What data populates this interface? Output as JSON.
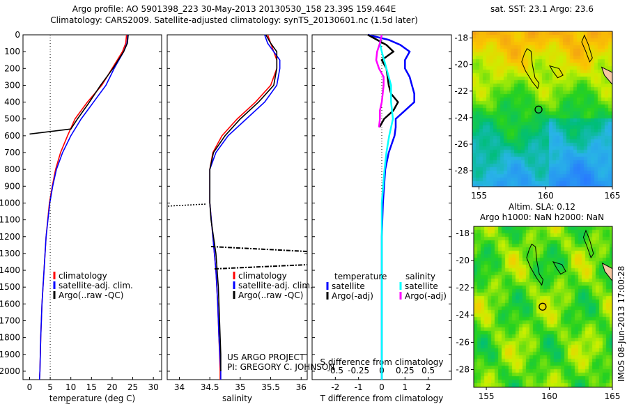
{
  "title": {
    "line1": "Argo profile: AO 5901398_223 30-May-2013 20130530_158 23.39S 159.464E",
    "line2": "Climatology: CARS2009. Satellite-adjusted climatology: synTS_20130601.nc (1.5d later)"
  },
  "credits": {
    "line1": "US ARGO PROJECT",
    "line2": "PI: GREGORY C. JOHNSON"
  },
  "timestamp": "IMOS 08-Jun-2013 17:00:28",
  "chart_data": [
    {
      "type": "line",
      "xlabel": "temperature (deg C)",
      "ylabel": "depth",
      "xlim": [
        -1.6,
        32
      ],
      "ylim": [
        2050,
        0
      ],
      "xticks": [
        0,
        5,
        10,
        15,
        20,
        25,
        30
      ],
      "yticks": [
        0,
        100,
        200,
        300,
        400,
        500,
        600,
        700,
        800,
        900,
        1000,
        1100,
        1200,
        1300,
        1400,
        1500,
        1600,
        1700,
        1800,
        1900,
        2000
      ],
      "legend": [
        "climatology",
        "satellite-adj. clim.",
        "Argo(..raw -QC)"
      ],
      "series": [
        {
          "name": "climatology",
          "color": "#ff0000",
          "depth": [
            0,
            50,
            100,
            200,
            300,
            400,
            500,
            600,
            700,
            800,
            900,
            1000,
            1200,
            1400,
            1600,
            1800,
            2000,
            2050
          ],
          "values": [
            23.5,
            23.3,
            22.5,
            20,
            17.5,
            14,
            11,
            9.2,
            7.5,
            6.3,
            5.5,
            4.8,
            4,
            3.5,
            3,
            2.7,
            2.5,
            2.4
          ]
        },
        {
          "name": "satellite-adj. clim.",
          "color": "#0000ff",
          "depth": [
            0,
            50,
            100,
            200,
            300,
            400,
            500,
            600,
            700,
            800,
            900,
            1000,
            1200,
            1400,
            1600,
            1800,
            2000,
            2050
          ],
          "values": [
            23.8,
            23.6,
            22.8,
            20.5,
            18.5,
            15.5,
            12.5,
            10,
            8,
            6.5,
            5.6,
            4.9,
            4,
            3.5,
            3,
            2.7,
            2.5,
            2.4
          ]
        },
        {
          "name": "Argo(..raw -QC)",
          "color": "#000000",
          "depth": [
            0,
            50,
            100,
            200,
            300,
            400,
            500,
            560,
            575,
            590
          ],
          "values": [
            23.9,
            23.7,
            22.8,
            20.2,
            17.2,
            14.5,
            11.6,
            10,
            5,
            0
          ]
        }
      ],
      "reference_line": {
        "x": 5,
        "style": "dotted"
      }
    },
    {
      "type": "line",
      "xlabel": "salinity",
      "ylabel": "depth",
      "xlim": [
        33.8,
        36.1
      ],
      "ylim": [
        2050,
        0
      ],
      "xticks": [
        34,
        34.5,
        35,
        35.5,
        36
      ],
      "legend": [
        "climatology",
        "satellite-adj. clim.",
        "Argo(..raw -QC)"
      ],
      "series": [
        {
          "name": "climatology",
          "color": "#ff0000",
          "depth": [
            0,
            50,
            100,
            150,
            200,
            300,
            400,
            500,
            600,
            700,
            800,
            900,
            1000,
            1200,
            1400,
            1600,
            1800,
            2000,
            2050
          ],
          "values": [
            35.45,
            35.5,
            35.55,
            35.6,
            35.6,
            35.5,
            35.25,
            34.95,
            34.7,
            34.55,
            34.5,
            34.5,
            34.5,
            34.55,
            34.6,
            34.63,
            34.65,
            34.67,
            34.67
          ]
        },
        {
          "name": "satellite-adj. clim.",
          "color": "#0000ff",
          "depth": [
            0,
            50,
            100,
            150,
            200,
            300,
            400,
            500,
            600,
            700,
            800,
            900,
            1000,
            1200,
            1400,
            1600,
            1800,
            2000,
            2050
          ],
          "values": [
            35.4,
            35.45,
            35.55,
            35.65,
            35.65,
            35.6,
            35.4,
            35.1,
            34.8,
            34.6,
            34.5,
            34.5,
            34.5,
            34.55,
            34.6,
            34.63,
            34.65,
            34.68,
            34.68
          ]
        },
        {
          "name": "Argo(..raw -QC)",
          "color": "#000000",
          "depth": [
            0,
            50,
            100,
            200,
            300,
            400,
            500,
            600,
            700,
            800,
            900,
            1000,
            1100,
            1200,
            1300,
            1400,
            1500,
            1600,
            1700,
            1800,
            1900,
            2000
          ],
          "values": [
            35.42,
            35.5,
            35.6,
            35.6,
            35.55,
            35.3,
            35,
            34.75,
            34.56,
            34.5,
            34.5,
            34.5,
            34.52,
            34.56,
            34.6,
            34.62,
            34.64,
            34.65,
            34.66,
            34.67,
            34.68,
            34.68
          ]
        }
      ]
    },
    {
      "type": "line",
      "xlabel": "T difference from climatology",
      "x2label": "S difference from climatology",
      "xlim": [
        -3,
        3
      ],
      "x2lim": [
        -0.75,
        0.75
      ],
      "ylim": [
        2050,
        0
      ],
      "xticks": [
        -2,
        -1,
        0,
        1,
        2
      ],
      "x2ticks": [
        -0.5,
        -0.25,
        0,
        0.25,
        0.5
      ],
      "legend": {
        "temperature_title": "temperature",
        "salinity_title": "salinity",
        "items": [
          "satellite",
          "Argo(-adj)",
          "satellite",
          "Argo(-adj)"
        ]
      },
      "series": [
        {
          "name": "temperature satellite",
          "color": "#0000ff",
          "axis": "T",
          "depth": [
            0,
            30,
            60,
            100,
            150,
            200,
            250,
            300,
            350,
            400,
            450,
            500,
            550,
            600,
            700,
            800,
            900,
            1000,
            1200,
            1500,
            2000,
            2050
          ],
          "values": [
            -0.6,
            0.3,
            0.8,
            1.2,
            1,
            1,
            1.2,
            1.3,
            1.4,
            1.4,
            1,
            0.6,
            0.6,
            0.55,
            0.3,
            0.15,
            0.1,
            0.05,
            0,
            0,
            0,
            0
          ]
        },
        {
          "name": "temperature Argo(-adj)",
          "color": "#000000",
          "axis": "T",
          "depth": [
            0,
            30,
            60,
            100,
            150,
            200,
            250,
            300,
            350,
            400,
            450,
            500,
            550
          ],
          "values": [
            -0.6,
            -0.2,
            0.2,
            0.5,
            0,
            0.2,
            0.25,
            0.3,
            0.4,
            0.7,
            0.5,
            0.1,
            -0.1
          ]
        },
        {
          "name": "salinity satellite",
          "color": "#00ffff",
          "axis": "S",
          "depth": [
            0,
            50,
            100,
            200,
            300,
            400,
            500,
            600,
            700,
            800,
            1000,
            1500,
            2000,
            2050
          ],
          "values": [
            0,
            -0.02,
            0,
            0.05,
            0.1,
            0.1,
            0.12,
            0.08,
            0.05,
            0.03,
            0,
            0,
            0,
            0
          ]
        },
        {
          "name": "salinity Argo(-adj)",
          "color": "#ff00ff",
          "axis": "S",
          "depth": [
            0,
            50,
            100,
            150,
            200,
            250,
            300,
            350,
            400,
            450,
            500,
            550
          ],
          "values": [
            0,
            -0.02,
            -0.05,
            -0.06,
            -0.03,
            0.02,
            0.02,
            0.01,
            0,
            -0.02,
            -0.02,
            -0.03
          ]
        }
      ]
    },
    {
      "type": "heatmap",
      "title": "sat. SST: 23.1  Argo: 23.6",
      "xticks": [
        155,
        160,
        165
      ],
      "yticks": [
        -18,
        -20,
        -22,
        -24,
        -26,
        -28
      ],
      "xlim": [
        154.5,
        165
      ],
      "ylim": [
        -29.2,
        -17.5
      ],
      "argo_position": [
        159.464,
        -23.39
      ]
    },
    {
      "type": "heatmap",
      "title": "Altim. SLA: 0.12",
      "subtitle": "Argo h1000: NaN h2000: NaN",
      "xticks": [
        155,
        160,
        165
      ],
      "yticks": [
        -18,
        -20,
        -22,
        -24,
        -26,
        -28
      ],
      "xlim": [
        154,
        165
      ],
      "ylim": [
        -29.3,
        -17.5
      ],
      "argo_position": [
        159.464,
        -23.39
      ]
    }
  ]
}
